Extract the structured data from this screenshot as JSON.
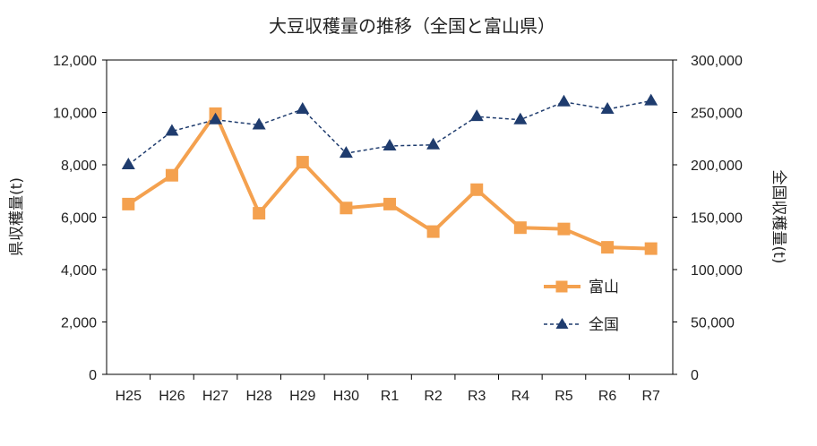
{
  "chart_data": {
    "type": "line",
    "title": "大豆収穫量の推移（全国と富山県）",
    "categories": [
      "H25",
      "H26",
      "H27",
      "H28",
      "H29",
      "H30",
      "R1",
      "R2",
      "R3",
      "R4",
      "R5",
      "R6",
      "R7"
    ],
    "y_left": {
      "label": "県収穫量(t)",
      "range": [
        0,
        12000
      ],
      "ticks": [
        0,
        2000,
        4000,
        6000,
        8000,
        10000,
        12000
      ],
      "tick_labels": [
        "0",
        "2,000",
        "4,000",
        "6,000",
        "8,000",
        "10,000",
        "12,000"
      ]
    },
    "y_right": {
      "label": "全国収穫量(t)",
      "range": [
        0,
        300000
      ],
      "ticks": [
        0,
        50000,
        100000,
        150000,
        200000,
        250000,
        300000
      ],
      "tick_labels": [
        "0",
        "50,000",
        "100,000",
        "150,000",
        "200,000",
        "250,000",
        "300,000"
      ]
    },
    "series": [
      {
        "name": "富山",
        "axis": "left",
        "color": "#f4a14f",
        "marker": "square",
        "line": "solid",
        "values": [
          6500,
          7600,
          9950,
          6150,
          8100,
          6350,
          6500,
          5450,
          7050,
          5600,
          5550,
          4850,
          4800
        ]
      },
      {
        "name": "全国",
        "axis": "right",
        "color": "#1f3c6e",
        "marker": "triangle",
        "line": "dashed",
        "values": [
          200000,
          232000,
          243000,
          238000,
          253000,
          211000,
          218000,
          219000,
          246000,
          243000,
          260000,
          253000,
          261000
        ]
      }
    ],
    "grid": false,
    "legend_position": "lower-right inside plot"
  }
}
